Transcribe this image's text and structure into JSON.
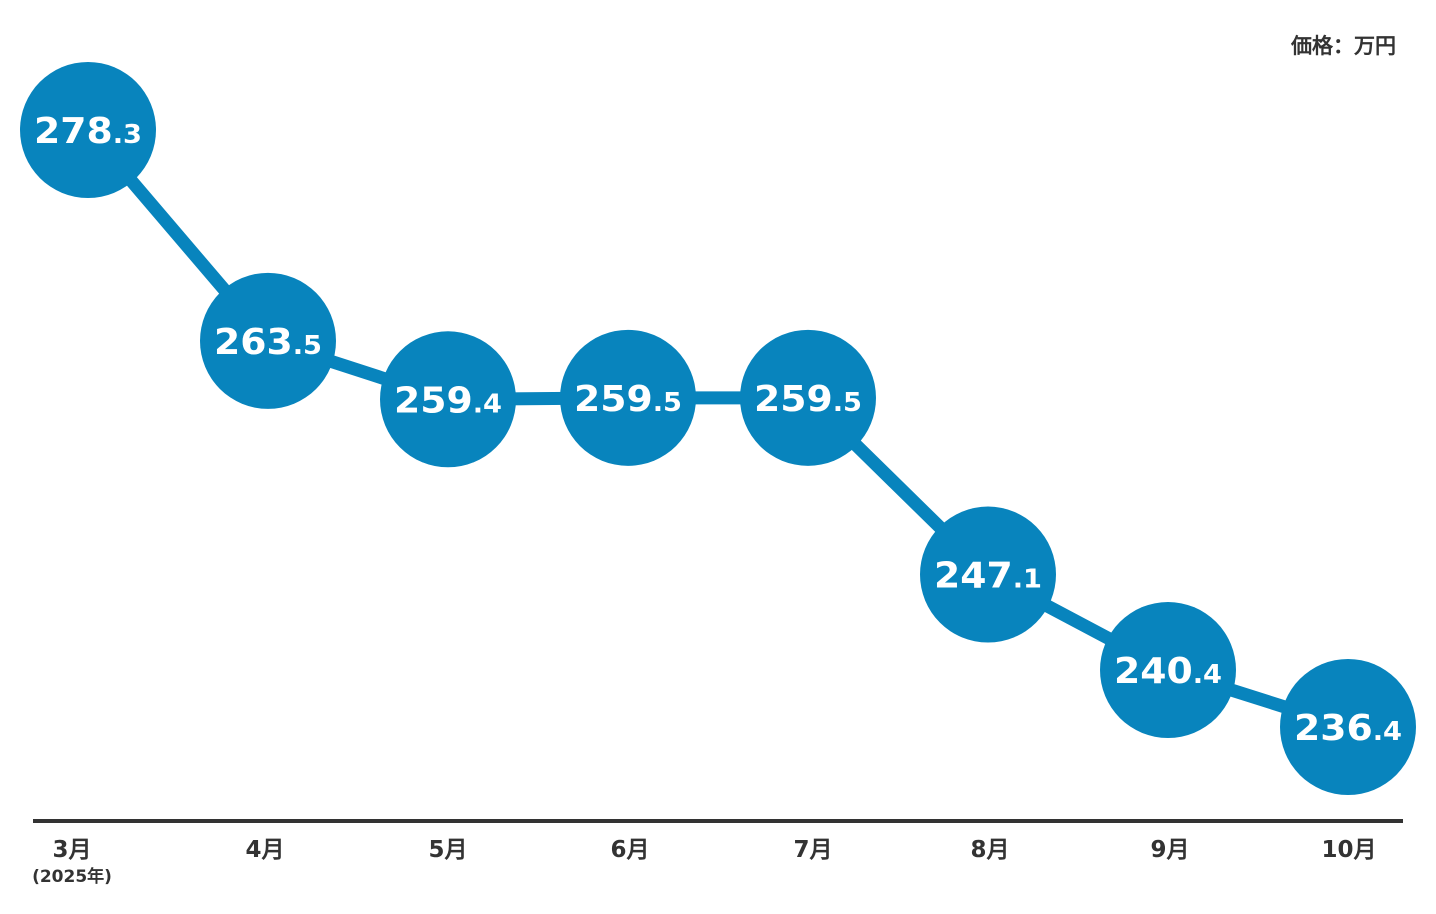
{
  "unit_label": "価格：万円",
  "colors": {
    "marker": "#0884bd",
    "line": "#0884bd",
    "axis": "#333333",
    "marker_text": "#ffffff"
  },
  "chart_data": {
    "type": "line",
    "categories": [
      "3月",
      "4月",
      "5月",
      "6月",
      "7月",
      "8月",
      "9月",
      "10月"
    ],
    "category_sublabels": [
      "(2025年)",
      "",
      "",
      "",
      "",
      "",
      "",
      ""
    ],
    "series": [
      {
        "values": [
          278.3,
          263.5,
          259.4,
          259.5,
          259.5,
          247.1,
          240.4,
          236.4
        ]
      }
    ],
    "data_labels": [
      "278.3",
      "263.5",
      "259.4",
      "259.5",
      "259.5",
      "247.1",
      "240.4",
      "236.4"
    ],
    "ylabel": "価格：万円",
    "ylim": [
      230,
      285
    ],
    "grid": false,
    "legend": "none"
  }
}
